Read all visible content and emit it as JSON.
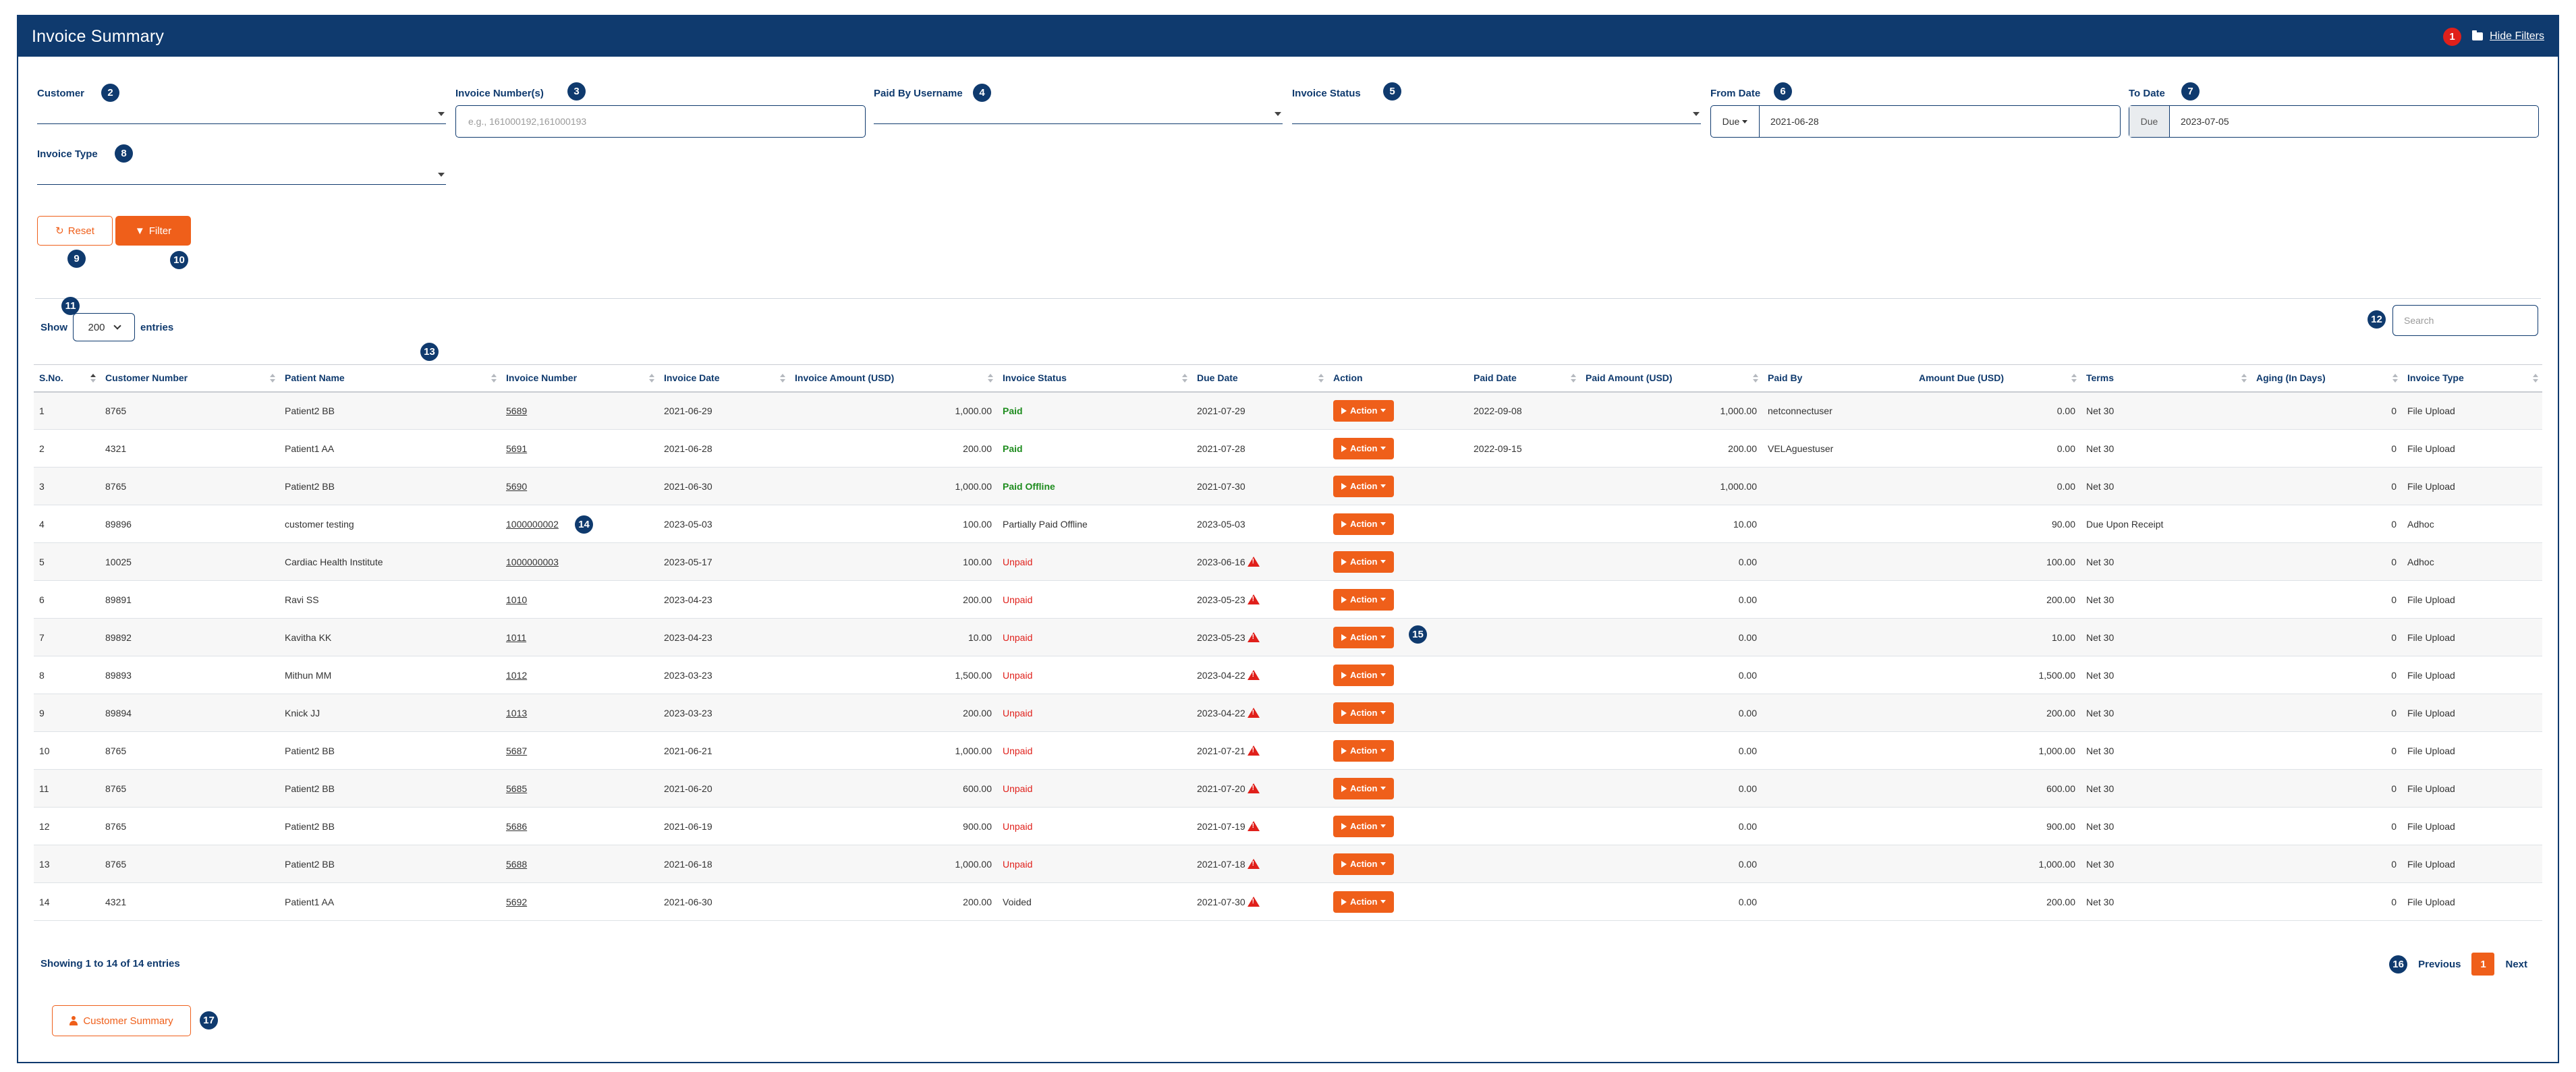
{
  "header": {
    "title": "Invoice Summary",
    "hide_filters_label": "Hide Filters"
  },
  "badges": {
    "b1": "1",
    "b2": "2",
    "b3": "3",
    "b4": "4",
    "b5": "5",
    "b6": "6",
    "b7": "7",
    "b8": "8",
    "b9": "9",
    "b10": "10",
    "b11": "11",
    "b12": "12",
    "b13": "13",
    "b14": "14",
    "b15": "15",
    "b16": "16",
    "b17": "17"
  },
  "filters": {
    "customer_label": "Customer",
    "invoice_numbers_label": "Invoice Number(s)",
    "invoice_numbers_placeholder": "e.g., 161000192,161000193",
    "paid_by_label": "Paid By Username",
    "invoice_status_label": "Invoice Status",
    "from_date_label": "From Date",
    "from_date_type": "Due",
    "from_date_value": "2021-06-28",
    "to_date_label": "To Date",
    "to_date_type": "Due",
    "to_date_value": "2023-07-05",
    "invoice_type_label": "Invoice Type",
    "reset_label": "Reset",
    "filter_label": "Filter"
  },
  "table_controls": {
    "show_label": "Show",
    "entries_value": "200",
    "entries_label": "entries",
    "search_placeholder": "Search"
  },
  "table": {
    "columns": [
      "S.No.",
      "Customer Number",
      "Patient Name",
      "Invoice Number",
      "Invoice Date",
      "Invoice Amount (USD)",
      "Invoice Status",
      "Due Date",
      "Action",
      "Paid Date",
      "Paid Amount (USD)",
      "Paid By",
      "Amount Due (USD)",
      "Terms",
      "Aging (In Days)",
      "Invoice Type"
    ],
    "action_label": "Action",
    "rows": [
      [
        "1",
        "8765",
        "Patient2 BB",
        "5689",
        "2021-06-29",
        "1,000.00",
        "Paid",
        "2021-07-29",
        "",
        "2022-09-08",
        "1,000.00",
        "netconnectuser",
        "0.00",
        "Net 30",
        "0",
        "File Upload"
      ],
      [
        "2",
        "4321",
        "Patient1 AA",
        "5691",
        "2021-06-28",
        "200.00",
        "Paid",
        "2021-07-28",
        "",
        "2022-09-15",
        "200.00",
        "VELAguestuser",
        "0.00",
        "Net 30",
        "0",
        "File Upload"
      ],
      [
        "3",
        "8765",
        "Patient2 BB",
        "5690",
        "2021-06-30",
        "1,000.00",
        "Paid Offline",
        "2021-07-30",
        "",
        "",
        "1,000.00",
        "",
        "0.00",
        "Net 30",
        "0",
        "File Upload"
      ],
      [
        "4",
        "89896",
        "customer testing",
        "1000000002",
        "2023-05-03",
        "100.00",
        "Partially Paid Offline",
        "2023-05-03",
        "",
        "",
        "10.00",
        "",
        "90.00",
        "Due Upon Receipt",
        "0",
        "Adhoc"
      ],
      [
        "5",
        "10025",
        "Cardiac Health Institute",
        "1000000003",
        "2023-05-17",
        "100.00",
        "Unpaid",
        "2023-06-16",
        "",
        "",
        "0.00",
        "",
        "100.00",
        "Net 30",
        "0",
        "Adhoc"
      ],
      [
        "6",
        "89891",
        "Ravi SS",
        "1010",
        "2023-04-23",
        "200.00",
        "Unpaid",
        "2023-05-23",
        "",
        "",
        "0.00",
        "",
        "200.00",
        "Net 30",
        "0",
        "File Upload"
      ],
      [
        "7",
        "89892",
        "Kavitha KK",
        "1011",
        "2023-04-23",
        "10.00",
        "Unpaid",
        "2023-05-23",
        "",
        "",
        "0.00",
        "",
        "10.00",
        "Net 30",
        "0",
        "File Upload"
      ],
      [
        "8",
        "89893",
        "Mithun MM",
        "1012",
        "2023-03-23",
        "1,500.00",
        "Unpaid",
        "2023-04-22",
        "",
        "",
        "0.00",
        "",
        "1,500.00",
        "Net 30",
        "0",
        "File Upload"
      ],
      [
        "9",
        "89894",
        "Knick JJ",
        "1013",
        "2023-03-23",
        "200.00",
        "Unpaid",
        "2023-04-22",
        "",
        "",
        "0.00",
        "",
        "200.00",
        "Net 30",
        "0",
        "File Upload"
      ],
      [
        "10",
        "8765",
        "Patient2 BB",
        "5687",
        "2021-06-21",
        "1,000.00",
        "Unpaid",
        "2021-07-21",
        "",
        "",
        "0.00",
        "",
        "1,000.00",
        "Net 30",
        "0",
        "File Upload"
      ],
      [
        "11",
        "8765",
        "Patient2 BB",
        "5685",
        "2021-06-20",
        "600.00",
        "Unpaid",
        "2021-07-20",
        "",
        "",
        "0.00",
        "",
        "600.00",
        "Net 30",
        "0",
        "File Upload"
      ],
      [
        "12",
        "8765",
        "Patient2 BB",
        "5686",
        "2021-06-19",
        "900.00",
        "Unpaid",
        "2021-07-19",
        "",
        "",
        "0.00",
        "",
        "900.00",
        "Net 30",
        "0",
        "File Upload"
      ],
      [
        "13",
        "8765",
        "Patient2 BB",
        "5688",
        "2021-06-18",
        "1,000.00",
        "Unpaid",
        "2021-07-18",
        "",
        "",
        "0.00",
        "",
        "1,000.00",
        "Net 30",
        "0",
        "File Upload"
      ],
      [
        "14",
        "4321",
        "Patient1 AA",
        "5692",
        "2021-06-30",
        "200.00",
        "Voided",
        "2021-07-30",
        "",
        "",
        "0.00",
        "",
        "200.00",
        "Net 30",
        "0",
        "File Upload"
      ]
    ],
    "overdue_rows": [
      4,
      5,
      6,
      7,
      8,
      9,
      10,
      11,
      12,
      13
    ]
  },
  "footer": {
    "showing_text": "Showing 1 to 14 of 14 entries",
    "previous_label": "Previous",
    "current_page": "1",
    "next_label": "Next",
    "customer_summary_label": "Customer Summary"
  },
  "colors": {
    "primary": "#0f3a6e",
    "accent": "#ef5f1a",
    "paid": "#1e8c1e",
    "unpaid": "#e0201b"
  }
}
